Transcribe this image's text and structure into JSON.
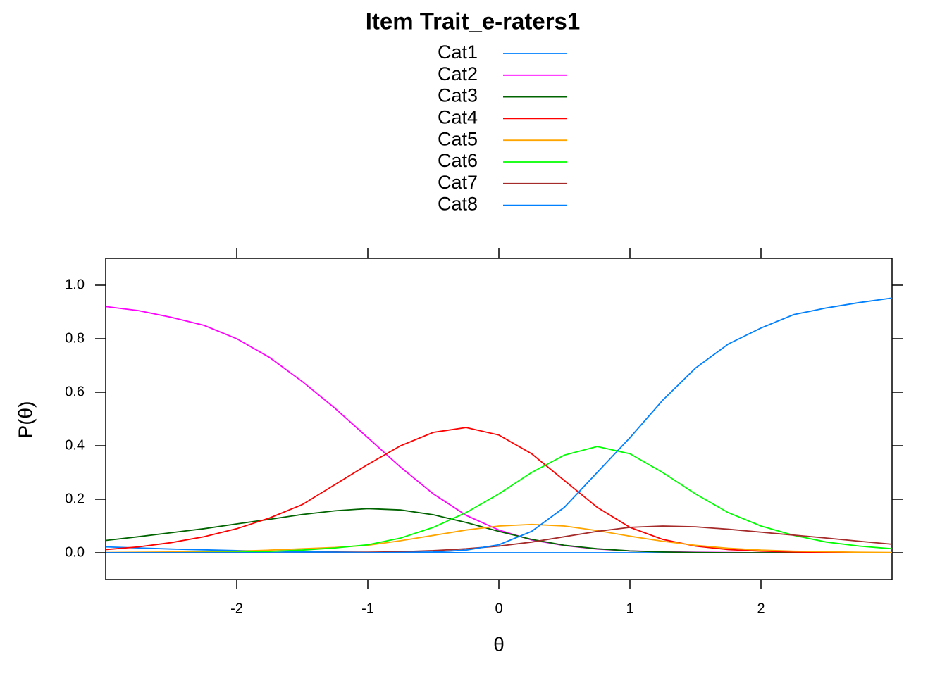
{
  "chart_data": {
    "type": "line",
    "title": "Item Trait_e-raters1",
    "x_label": "θ",
    "y_label": "P(θ)",
    "x": [
      -3,
      -2.75,
      -2.5,
      -2.25,
      -2,
      -1.75,
      -1.5,
      -1.25,
      -1,
      -0.75,
      -0.5,
      -0.25,
      0,
      0.25,
      0.5,
      0.75,
      1,
      1.25,
      1.5,
      1.75,
      2,
      2.25,
      2.5,
      2.75,
      3
    ],
    "series": [
      {
        "name": "Cat1",
        "color": "#0080ff",
        "values": [
          0.022,
          0.018,
          0.014,
          0.011,
          0.008,
          0.006,
          0.004,
          0.003,
          0.002,
          0.001,
          0.001,
          0,
          0,
          0,
          0,
          0,
          0,
          0,
          0,
          0,
          0,
          0,
          0,
          0,
          0
        ]
      },
      {
        "name": "Cat2",
        "color": "#ff00ff",
        "values": [
          0.92,
          0.905,
          0.88,
          0.85,
          0.8,
          0.73,
          0.64,
          0.54,
          0.43,
          0.32,
          0.22,
          0.14,
          0.085,
          0.048,
          0.027,
          0.014,
          0.007,
          0.004,
          0.002,
          0.001,
          0,
          0,
          0,
          0,
          0
        ]
      },
      {
        "name": "Cat3",
        "color": "#006400",
        "values": [
          0.046,
          0.06,
          0.075,
          0.09,
          0.108,
          0.125,
          0.143,
          0.157,
          0.165,
          0.16,
          0.142,
          0.113,
          0.08,
          0.05,
          0.028,
          0.015,
          0.007,
          0.003,
          0.001,
          0,
          0,
          0,
          0,
          0,
          0
        ]
      },
      {
        "name": "Cat4",
        "color": "#ff0000",
        "values": [
          0.012,
          0.022,
          0.038,
          0.06,
          0.09,
          0.13,
          0.18,
          0.255,
          0.33,
          0.4,
          0.45,
          0.468,
          0.44,
          0.37,
          0.27,
          0.17,
          0.095,
          0.05,
          0.025,
          0.012,
          0.006,
          0.003,
          0.001,
          0,
          0
        ]
      },
      {
        "name": "Cat5",
        "color": "#ffa500",
        "values": [
          0.001,
          0.002,
          0.003,
          0.004,
          0.006,
          0.01,
          0.015,
          0.02,
          0.028,
          0.045,
          0.065,
          0.085,
          0.1,
          0.106,
          0.1,
          0.083,
          0.062,
          0.043,
          0.028,
          0.017,
          0.01,
          0.006,
          0.004,
          0.002,
          0.001
        ]
      },
      {
        "name": "Cat6",
        "color": "#00ff00",
        "values": [
          0,
          0,
          0,
          0.001,
          0.002,
          0.005,
          0.01,
          0.018,
          0.03,
          0.055,
          0.095,
          0.15,
          0.22,
          0.3,
          0.365,
          0.397,
          0.37,
          0.3,
          0.22,
          0.15,
          0.1,
          0.065,
          0.04,
          0.025,
          0.015
        ]
      },
      {
        "name": "Cat7",
        "color": "#a52a2a",
        "values": [
          0,
          0,
          0,
          0,
          0,
          0,
          0,
          0.001,
          0.002,
          0.004,
          0.008,
          0.015,
          0.025,
          0.04,
          0.06,
          0.08,
          0.095,
          0.1,
          0.097,
          0.088,
          0.077,
          0.066,
          0.055,
          0.043,
          0.032
        ]
      },
      {
        "name": "Cat8",
        "color": "#0080ff",
        "values": [
          0,
          0,
          0,
          0,
          0,
          0,
          0,
          0,
          0,
          0.001,
          0.003,
          0.01,
          0.03,
          0.08,
          0.17,
          0.3,
          0.43,
          0.57,
          0.69,
          0.78,
          0.84,
          0.89,
          0.915,
          0.935,
          0.952
        ]
      }
    ],
    "xlim": [
      -3,
      3
    ],
    "xticks": [
      -2,
      -1,
      0,
      1,
      2
    ],
    "ylim": [
      -0.1,
      1.1
    ],
    "yticks": [
      {
        "value": 0,
        "label": "0.0"
      },
      0.2,
      0.4,
      0.6,
      0.8,
      {
        "value": 1,
        "label": "1.0"
      }
    ]
  }
}
